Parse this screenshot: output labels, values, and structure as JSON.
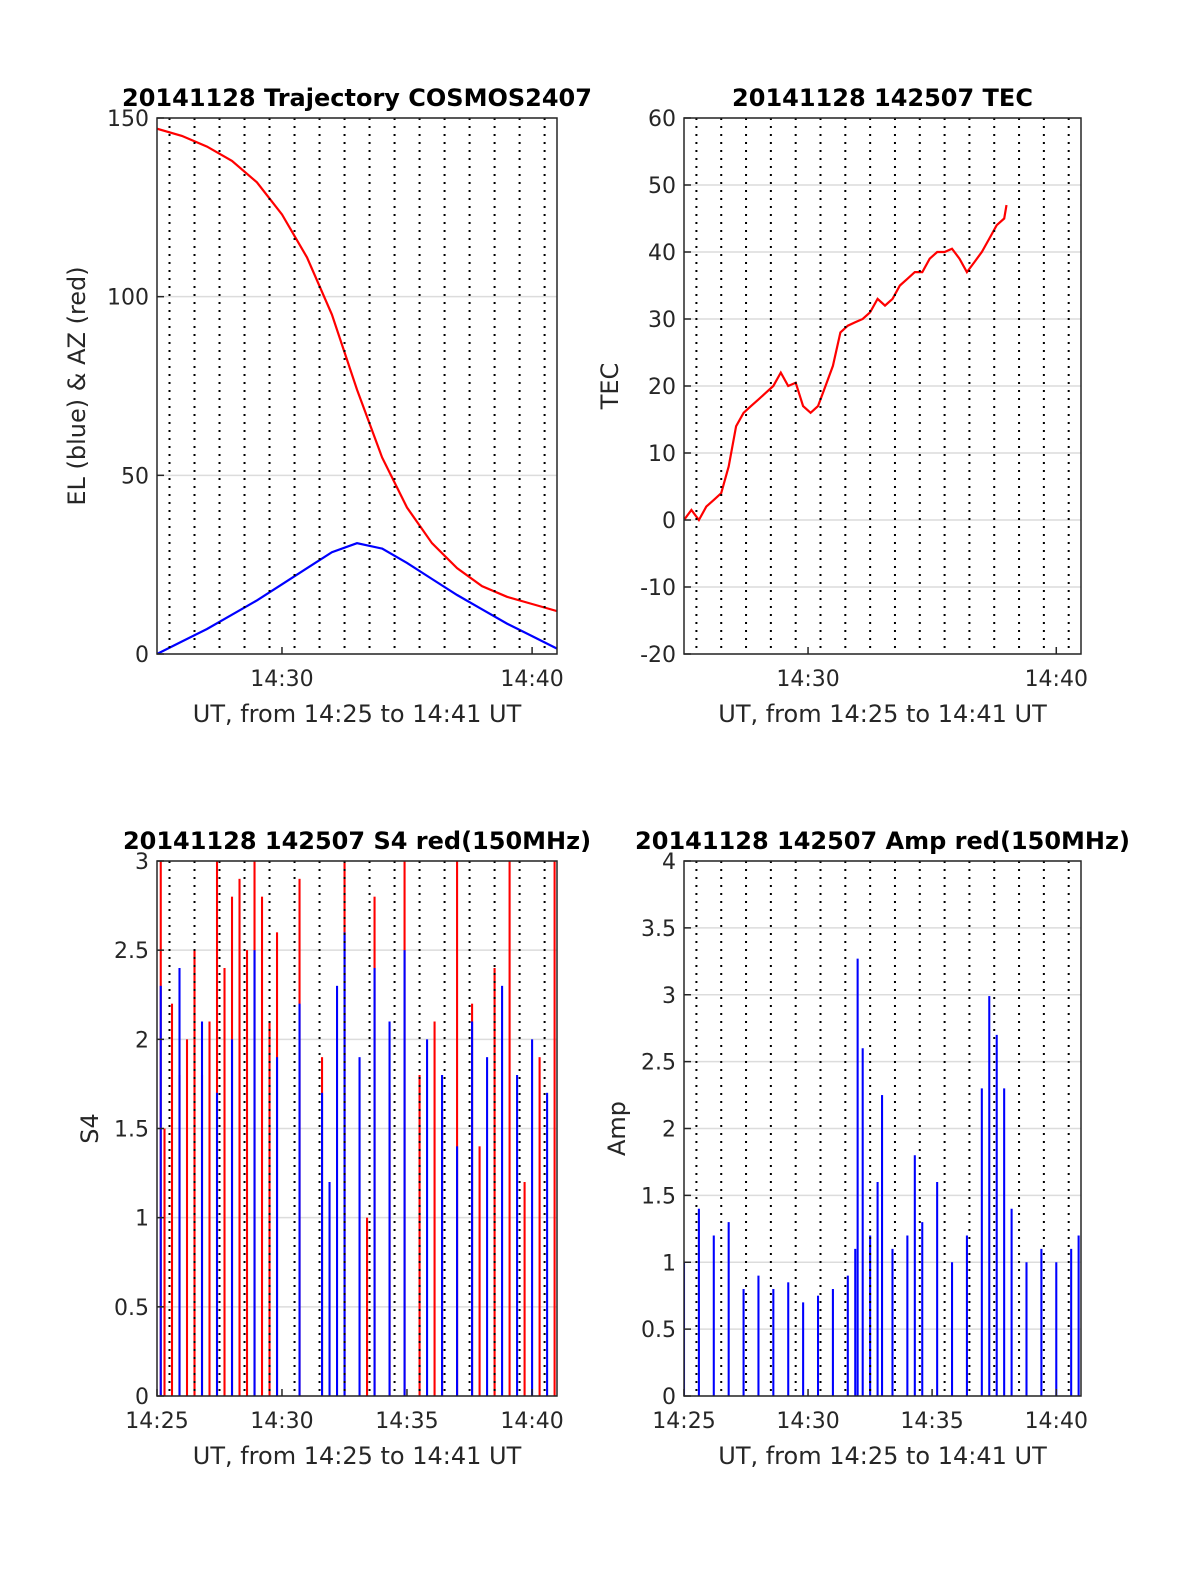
{
  "figure_title": "",
  "chart_data": [
    {
      "type": "line",
      "title": "20141128 Trajectory COSMOS2407",
      "xlabel": "UT, from 14:25 to 14:41 UT",
      "ylabel": "EL (blue) & AZ (red)",
      "xlim": [
        14.4167,
        14.6833
      ],
      "ylim": [
        0,
        150
      ],
      "xticks": [
        {
          "v": 14.5,
          "label": "14:30"
        },
        {
          "v": 14.6667,
          "label": "14:40"
        }
      ],
      "yticks": [
        0,
        50,
        100,
        150
      ],
      "ygrid": true,
      "series": [
        {
          "color": "#ff0000",
          "points": [
            [
              14.4167,
              147
            ],
            [
              14.4333,
              145
            ],
            [
              14.45,
              142
            ],
            [
              14.4667,
              138
            ],
            [
              14.4833,
              132
            ],
            [
              14.5,
              123
            ],
            [
              14.5167,
              111
            ],
            [
              14.5333,
              95
            ],
            [
              14.55,
              74
            ],
            [
              14.5667,
              55
            ],
            [
              14.5833,
              41
            ],
            [
              14.6,
              31
            ],
            [
              14.6167,
              24
            ],
            [
              14.6333,
              19
            ],
            [
              14.65,
              16
            ],
            [
              14.6667,
              14
            ],
            [
              14.6833,
              12
            ]
          ]
        },
        {
          "color": "#0000ff",
          "points": [
            [
              14.4167,
              0
            ],
            [
              14.4333,
              3.5
            ],
            [
              14.45,
              7
            ],
            [
              14.4667,
              11
            ],
            [
              14.4833,
              15
            ],
            [
              14.5,
              19.5
            ],
            [
              14.5167,
              24
            ],
            [
              14.5333,
              28.5
            ],
            [
              14.55,
              31
            ],
            [
              14.5667,
              29.5
            ],
            [
              14.5833,
              25.5
            ],
            [
              14.6,
              21
            ],
            [
              14.6167,
              16.5
            ],
            [
              14.6333,
              12.5
            ],
            [
              14.65,
              8.5
            ],
            [
              14.6667,
              5
            ],
            [
              14.6833,
              1.5
            ]
          ]
        }
      ]
    },
    {
      "type": "line",
      "title": "20141128 142507 TEC",
      "xlabel": "UT, from 14:25 to 14:41 UT",
      "ylabel": "TEC",
      "xlim": [
        14.4167,
        14.6833
      ],
      "ylim": [
        -20,
        60
      ],
      "xticks": [
        {
          "v": 14.5,
          "label": "14:30"
        },
        {
          "v": 14.6667,
          "label": "14:40"
        }
      ],
      "yticks": [
        -20,
        -10,
        0,
        10,
        20,
        30,
        40,
        50,
        60
      ],
      "ygrid": true,
      "series": [
        {
          "color": "#ff0000",
          "points": [
            [
              14.4167,
              0
            ],
            [
              14.4217,
              1.5
            ],
            [
              14.4267,
              0
            ],
            [
              14.4317,
              2
            ],
            [
              14.4367,
              3
            ],
            [
              14.4417,
              4
            ],
            [
              14.4467,
              8
            ],
            [
              14.4517,
              14
            ],
            [
              14.4567,
              16
            ],
            [
              14.4617,
              17
            ],
            [
              14.4667,
              18
            ],
            [
              14.4717,
              19
            ],
            [
              14.4767,
              20
            ],
            [
              14.4817,
              22
            ],
            [
              14.4867,
              20
            ],
            [
              14.4917,
              20.5
            ],
            [
              14.4967,
              17
            ],
            [
              14.5017,
              16
            ],
            [
              14.5067,
              17
            ],
            [
              14.5117,
              20
            ],
            [
              14.5167,
              23
            ],
            [
              14.5217,
              28
            ],
            [
              14.5267,
              29
            ],
            [
              14.5317,
              29.5
            ],
            [
              14.5367,
              30
            ],
            [
              14.5417,
              31
            ],
            [
              14.5467,
              33
            ],
            [
              14.5517,
              32
            ],
            [
              14.5567,
              33
            ],
            [
              14.5617,
              35
            ],
            [
              14.5667,
              36
            ],
            [
              14.5717,
              37
            ],
            [
              14.5767,
              37
            ],
            [
              14.5817,
              39
            ],
            [
              14.5867,
              40
            ],
            [
              14.5917,
              40
            ],
            [
              14.5967,
              40.5
            ],
            [
              14.6017,
              39
            ],
            [
              14.6067,
              37
            ],
            [
              14.6117,
              38.5
            ],
            [
              14.6167,
              40
            ],
            [
              14.6217,
              42
            ],
            [
              14.6267,
              44
            ],
            [
              14.6317,
              45
            ],
            [
              14.6333,
              47
            ]
          ]
        }
      ]
    },
    {
      "type": "bar",
      "title": "20141128 142507 S4 red(150MHz)",
      "xlabel": "UT, from 14:25 to 14:41 UT",
      "ylabel": "S4",
      "xlim": [
        14.4167,
        14.6833
      ],
      "ylim": [
        0,
        3
      ],
      "xticks": [
        {
          "v": 14.4167,
          "label": "14:25"
        },
        {
          "v": 14.5,
          "label": "14:30"
        },
        {
          "v": 14.5833,
          "label": "14:35"
        },
        {
          "v": 14.6667,
          "label": "14:40"
        }
      ],
      "yticks": [
        0,
        0.5,
        1,
        1.5,
        2,
        2.5,
        3
      ],
      "ygrid": true,
      "series": [
        {
          "color": "#ff0000",
          "points": [
            [
              14.4192,
              3
            ],
            [
              14.4217,
              1.5
            ],
            [
              14.4267,
              2.2
            ],
            [
              14.4317,
              1.8
            ],
            [
              14.4367,
              2
            ],
            [
              14.4417,
              2.5
            ],
            [
              14.4467,
              1.8
            ],
            [
              14.4517,
              2.1
            ],
            [
              14.4567,
              3
            ],
            [
              14.4617,
              2.4
            ],
            [
              14.4667,
              2.8
            ],
            [
              14.4717,
              2.9
            ],
            [
              14.4767,
              2.5
            ],
            [
              14.4817,
              3
            ],
            [
              14.4867,
              2.8
            ],
            [
              14.4917,
              2.1
            ],
            [
              14.4967,
              2.6
            ],
            [
              14.5117,
              2.9
            ],
            [
              14.5267,
              1.9
            ],
            [
              14.5417,
              3
            ],
            [
              14.5567,
              1
            ],
            [
              14.5617,
              2.8
            ],
            [
              14.5717,
              1.7
            ],
            [
              14.5817,
              3
            ],
            [
              14.5917,
              1.8
            ],
            [
              14.6017,
              2.1
            ],
            [
              14.6067,
              1.6
            ],
            [
              14.6167,
              3
            ],
            [
              14.6267,
              2.2
            ],
            [
              14.6317,
              1.4
            ],
            [
              14.6417,
              2.4
            ],
            [
              14.6517,
              3
            ],
            [
              14.6617,
              1.2
            ],
            [
              14.6717,
              1.9
            ],
            [
              14.6817,
              3
            ]
          ]
        },
        {
          "color": "#0000ff",
          "points": [
            [
              14.4192,
              2.3
            ],
            [
              14.4317,
              2.4
            ],
            [
              14.4467,
              2.1
            ],
            [
              14.4567,
              1.7
            ],
            [
              14.4667,
              2
            ],
            [
              14.4817,
              2.5
            ],
            [
              14.4967,
              1.9
            ],
            [
              14.5117,
              2.2
            ],
            [
              14.5267,
              1.7
            ],
            [
              14.5317,
              1.2
            ],
            [
              14.5367,
              2.3
            ],
            [
              14.5417,
              2.6
            ],
            [
              14.5517,
              1.9
            ],
            [
              14.5617,
              2.4
            ],
            [
              14.5717,
              2.1
            ],
            [
              14.5817,
              2.5
            ],
            [
              14.5967,
              2
            ],
            [
              14.6067,
              1.8
            ],
            [
              14.6167,
              1.4
            ],
            [
              14.6267,
              2.1
            ],
            [
              14.6367,
              1.9
            ],
            [
              14.6467,
              2.3
            ],
            [
              14.6567,
              1.8
            ],
            [
              14.6667,
              2
            ],
            [
              14.6767,
              1.7
            ]
          ]
        }
      ]
    },
    {
      "type": "bar",
      "title": "20141128 142507 Amp red(150MHz)",
      "xlabel": "UT, from 14:25 to 14:41 UT",
      "ylabel": "Amp",
      "xlim": [
        14.4167,
        14.6833
      ],
      "ylim": [
        0,
        4
      ],
      "xticks": [
        {
          "v": 14.4167,
          "label": "14:25"
        },
        {
          "v": 14.5,
          "label": "14:30"
        },
        {
          "v": 14.5833,
          "label": "14:35"
        },
        {
          "v": 14.6667,
          "label": "14:40"
        }
      ],
      "yticks": [
        0,
        0.5,
        1,
        1.5,
        2,
        2.5,
        3,
        3.5,
        4
      ],
      "ygrid": true,
      "series": [
        {
          "color": "#0000ff",
          "points": [
            [
              14.4167,
              1
            ],
            [
              14.4267,
              1.4
            ],
            [
              14.4367,
              1.2
            ],
            [
              14.4467,
              1.3
            ],
            [
              14.4567,
              0.8
            ],
            [
              14.4667,
              0.9
            ],
            [
              14.4767,
              0.8
            ],
            [
              14.4867,
              0.85
            ],
            [
              14.4967,
              0.7
            ],
            [
              14.5067,
              0.75
            ],
            [
              14.5167,
              0.8
            ],
            [
              14.5267,
              0.9
            ],
            [
              14.5317,
              1.1
            ],
            [
              14.5333,
              3.27
            ],
            [
              14.5367,
              2.6
            ],
            [
              14.5417,
              1.2
            ],
            [
              14.5467,
              1.6
            ],
            [
              14.5497,
              2.25
            ],
            [
              14.5567,
              1.1
            ],
            [
              14.5667,
              1.2
            ],
            [
              14.5717,
              1.8
            ],
            [
              14.5767,
              1.3
            ],
            [
              14.5867,
              1.6
            ],
            [
              14.5967,
              1
            ],
            [
              14.6067,
              1.2
            ],
            [
              14.6167,
              2.3
            ],
            [
              14.6217,
              2.99
            ],
            [
              14.6267,
              2.7
            ],
            [
              14.6317,
              2.3
            ],
            [
              14.6367,
              1.4
            ],
            [
              14.6467,
              1
            ],
            [
              14.6567,
              1.1
            ],
            [
              14.6667,
              1
            ],
            [
              14.6767,
              1.1
            ],
            [
              14.6817,
              1.2
            ]
          ]
        }
      ]
    }
  ]
}
